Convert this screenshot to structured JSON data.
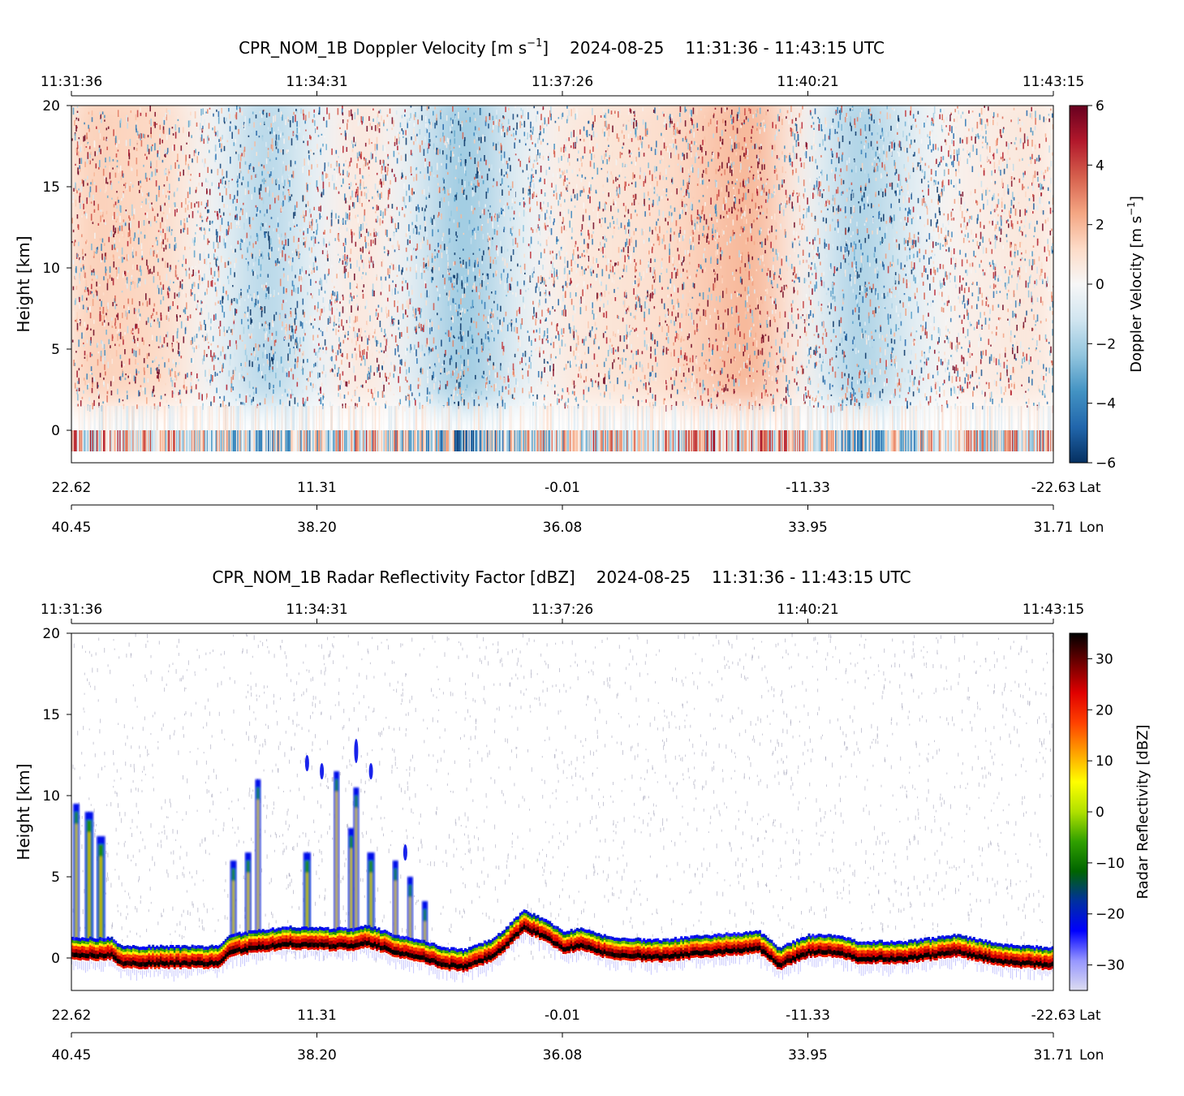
{
  "chart_data": [
    {
      "type": "heatmap",
      "title": {
        "prefix": "CPR_NOM_1B Doppler Velocity [m s",
        "superscript": "−1",
        "suffix": "]",
        "date": "2024-08-25",
        "time_range": "11:31:36 - 11:43:15 UTC"
      },
      "ylabel": "Height [km]",
      "ylim": [
        -2,
        20
      ],
      "yticks": [
        "0",
        "5",
        "10",
        "15",
        "20"
      ],
      "ytick_values": [
        0,
        5,
        10,
        15,
        20
      ],
      "time_ticks": [
        "11:31:36",
        "11:34:31",
        "11:37:26",
        "11:40:21",
        "11:43:15"
      ],
      "lat_ticks": [
        "22.62",
        "11.31",
        "-0.01",
        "-11.33",
        "-22.63"
      ],
      "lat_label": "Lat",
      "lon_ticks": [
        "40.45",
        "38.20",
        "36.08",
        "33.95",
        "31.71"
      ],
      "lon_label": "Lon",
      "colorbar": {
        "label_prefix": "Doppler Velocity [m s",
        "label_superscript": "−1",
        "label_suffix": "]",
        "range": [
          -6,
          6
        ],
        "ticks": [
          "−6",
          "−4",
          "−2",
          "0",
          "2",
          "4",
          "6"
        ],
        "tick_values": [
          -6,
          -4,
          -2,
          0,
          2,
          4,
          6
        ],
        "colormap": "RdBu_r",
        "colors": [
          "#053061",
          "#2166ac",
          "#4393c3",
          "#92c5de",
          "#d1e5f0",
          "#f7f7f7",
          "#fddbc7",
          "#f4a582",
          "#d6604d",
          "#b2182b",
          "#67001f"
        ]
      },
      "x_fraction_profile": [
        0,
        0.1,
        0.2,
        0.3,
        0.4,
        0.5,
        0.6,
        0.7,
        0.8,
        0.9,
        1.0
      ],
      "mean_velocity_profile": [
        1.5,
        1.2,
        -2.0,
        1.0,
        -2.5,
        0.6,
        1.0,
        2.2,
        -2.2,
        0.3,
        0.8
      ],
      "noisy_range_km": [
        1.5,
        20
      ],
      "surface_band_km": [
        -1.3,
        0
      ]
    },
    {
      "type": "heatmap",
      "title": {
        "prefix": "CPR_NOM_1B Radar Reflectivity Factor [dBZ]",
        "date": "2024-08-25",
        "time_range": "11:31:36 - 11:43:15 UTC"
      },
      "ylabel": "Height [km]",
      "ylim": [
        -2,
        20
      ],
      "yticks": [
        "0",
        "5",
        "10",
        "15",
        "20"
      ],
      "ytick_values": [
        0,
        5,
        10,
        15,
        20
      ],
      "time_ticks": [
        "11:31:36",
        "11:34:31",
        "11:37:26",
        "11:40:21",
        "11:43:15"
      ],
      "lat_ticks": [
        "22.62",
        "11.31",
        "-0.01",
        "-11.33",
        "-22.63"
      ],
      "lat_label": "Lat",
      "lon_ticks": [
        "40.45",
        "38.20",
        "36.08",
        "33.95",
        "31.71"
      ],
      "lon_label": "Lon",
      "colorbar": {
        "label": "Radar Reflectivity [dBZ]",
        "range": [
          -35,
          35
        ],
        "ticks": [
          "−30",
          "−20",
          "−10",
          "0",
          "10",
          "20",
          "30"
        ],
        "tick_values": [
          -30,
          -20,
          -10,
          0,
          10,
          20,
          30
        ],
        "colormap": "chiljet",
        "colors": [
          "#dcdcf0",
          "#9696ff",
          "#0000ff",
          "#0030a0",
          "#006400",
          "#30a000",
          "#b0e000",
          "#ffff00",
          "#ffa000",
          "#ff4000",
          "#e00000",
          "#700000",
          "#000000"
        ]
      },
      "surface_profile": {
        "x_fraction": [
          0,
          0.04,
          0.05,
          0.15,
          0.16,
          0.18,
          0.22,
          0.26,
          0.29,
          0.3,
          0.33,
          0.36,
          0.38,
          0.4,
          0.43,
          0.46,
          0.48,
          0.5,
          0.52,
          0.55,
          0.6,
          0.65,
          0.7,
          0.72,
          0.75,
          0.78,
          0.8,
          0.85,
          0.9,
          0.95,
          1.0
        ],
        "height_km": [
          0.8,
          0.8,
          0.3,
          0.3,
          1.0,
          1.2,
          1.5,
          1.4,
          1.4,
          1.6,
          1.0,
          0.6,
          0.2,
          0.1,
          0.8,
          2.5,
          2.0,
          1.2,
          1.4,
          0.8,
          0.7,
          1.0,
          1.2,
          0.2,
          1.0,
          1.0,
          0.6,
          0.6,
          1.0,
          0.4,
          0.2
        ]
      },
      "convective_towers": [
        {
          "x_fraction": 0.005,
          "top_km": 9.5,
          "width": 0.004
        },
        {
          "x_fraction": 0.018,
          "top_km": 9.0,
          "width": 0.006
        },
        {
          "x_fraction": 0.03,
          "top_km": 7.5,
          "width": 0.006
        },
        {
          "x_fraction": 0.165,
          "top_km": 6.0,
          "width": 0.004
        },
        {
          "x_fraction": 0.18,
          "top_km": 6.5,
          "width": 0.004
        },
        {
          "x_fraction": 0.19,
          "top_km": 11.0,
          "width": 0.003
        },
        {
          "x_fraction": 0.24,
          "top_km": 6.5,
          "width": 0.005
        },
        {
          "x_fraction": 0.27,
          "top_km": 11.5,
          "width": 0.003
        },
        {
          "x_fraction": 0.285,
          "top_km": 8.0,
          "width": 0.004
        },
        {
          "x_fraction": 0.29,
          "top_km": 10.5,
          "width": 0.003
        },
        {
          "x_fraction": 0.305,
          "top_km": 6.5,
          "width": 0.005
        },
        {
          "x_fraction": 0.33,
          "top_km": 6.0,
          "width": 0.003
        },
        {
          "x_fraction": 0.345,
          "top_km": 5.0,
          "width": 0.003
        },
        {
          "x_fraction": 0.36,
          "top_km": 3.5,
          "width": 0.003
        }
      ],
      "ice_patches": [
        {
          "x_fraction": 0.24,
          "bottom_km": 11.5,
          "top_km": 12.5
        },
        {
          "x_fraction": 0.255,
          "bottom_km": 11.0,
          "top_km": 12.0
        },
        {
          "x_fraction": 0.29,
          "bottom_km": 12.0,
          "top_km": 13.5
        },
        {
          "x_fraction": 0.305,
          "bottom_km": 11.0,
          "top_km": 12.0
        },
        {
          "x_fraction": 0.34,
          "bottom_km": 6.0,
          "top_km": 7.0
        }
      ]
    }
  ]
}
